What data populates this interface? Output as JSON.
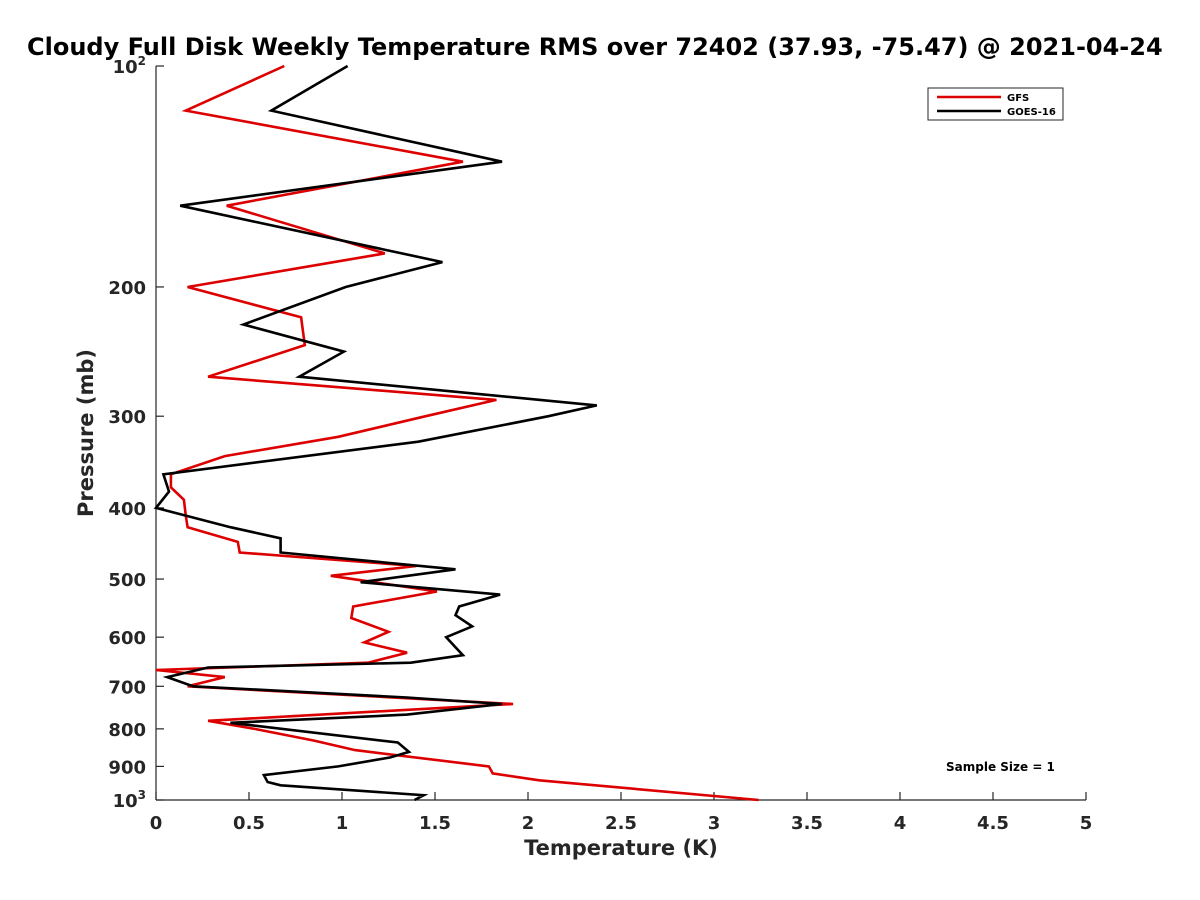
{
  "chart_data": {
    "type": "line",
    "title": "Cloudy Full Disk Weekly Temperature RMS over 72402 (37.93, -75.47) @ 2021-04-24",
    "xlabel": "Temperature (K)",
    "ylabel": "Pressure (mb)",
    "xlim": [
      0,
      5
    ],
    "ylim": [
      100,
      1000
    ],
    "y_scale": "log",
    "y_reversed": true,
    "x_ticks": [
      "0",
      "0.5",
      "1",
      "1.5",
      "2",
      "2.5",
      "3",
      "3.5",
      "4",
      "4.5",
      "5"
    ],
    "y_ticks": [
      {
        "value": 100,
        "base": "10",
        "exp": "2"
      },
      {
        "value": 200,
        "label": "200"
      },
      {
        "value": 300,
        "label": "300"
      },
      {
        "value": 400,
        "label": "400"
      },
      {
        "value": 500,
        "label": "500"
      },
      {
        "value": 600,
        "label": "600"
      },
      {
        "value": 700,
        "label": "700"
      },
      {
        "value": 800,
        "label": "800"
      },
      {
        "value": 900,
        "label": "900"
      },
      {
        "value": 1000,
        "base": "10",
        "exp": "3"
      }
    ],
    "legend_position": "top-right",
    "grid": false,
    "annotation": "Sample Size = 1",
    "series": [
      {
        "name": "GFS",
        "color": "#dd0000",
        "points": [
          [
            0.69,
            100
          ],
          [
            0.16,
            115
          ],
          [
            1.65,
            135
          ],
          [
            0.38,
            155
          ],
          [
            1.23,
            180
          ],
          [
            0.17,
            200
          ],
          [
            0.78,
            220
          ],
          [
            0.8,
            240
          ],
          [
            0.28,
            265
          ],
          [
            1.83,
            285
          ],
          [
            1.45,
            300
          ],
          [
            0.98,
            320
          ],
          [
            0.37,
            340
          ],
          [
            0.08,
            360
          ],
          [
            0.08,
            375
          ],
          [
            0.15,
            390
          ],
          [
            0.16,
            410
          ],
          [
            0.17,
            425
          ],
          [
            0.44,
            445
          ],
          [
            0.45,
            460
          ],
          [
            1.4,
            480
          ],
          [
            0.94,
            495
          ],
          [
            1.51,
            520
          ],
          [
            1.06,
            545
          ],
          [
            1.05,
            565
          ],
          [
            1.25,
            590
          ],
          [
            1.12,
            610
          ],
          [
            1.35,
            630
          ],
          [
            1.14,
            650
          ],
          [
            0.0,
            665
          ],
          [
            0.37,
            680
          ],
          [
            0.17,
            700
          ],
          [
            1.92,
            740
          ],
          [
            0.28,
            780
          ],
          [
            0.53,
            800
          ],
          [
            0.85,
            830
          ],
          [
            1.07,
            855
          ],
          [
            1.79,
            900
          ],
          [
            1.81,
            920
          ],
          [
            2.06,
            940
          ],
          [
            3.24,
            1000
          ]
        ]
      },
      {
        "name": "GOES-16",
        "color": "#000000",
        "points": [
          [
            1.03,
            100
          ],
          [
            0.62,
            115
          ],
          [
            1.86,
            135
          ],
          [
            0.13,
            155
          ],
          [
            1.54,
            185
          ],
          [
            1.02,
            200
          ],
          [
            0.47,
            225
          ],
          [
            1.01,
            245
          ],
          [
            0.77,
            265
          ],
          [
            2.37,
            290
          ],
          [
            2.11,
            300
          ],
          [
            1.41,
            325
          ],
          [
            0.04,
            360
          ],
          [
            0.07,
            380
          ],
          [
            0.0,
            400
          ],
          [
            0.4,
            425
          ],
          [
            0.67,
            440
          ],
          [
            0.67,
            460
          ],
          [
            1.61,
            485
          ],
          [
            1.1,
            505
          ],
          [
            1.85,
            525
          ],
          [
            1.63,
            545
          ],
          [
            1.61,
            560
          ],
          [
            1.7,
            580
          ],
          [
            1.56,
            600
          ],
          [
            1.65,
            635
          ],
          [
            1.37,
            650
          ],
          [
            0.28,
            660
          ],
          [
            0.06,
            680
          ],
          [
            0.2,
            700
          ],
          [
            1.35,
            725
          ],
          [
            1.86,
            740
          ],
          [
            1.35,
            765
          ],
          [
            0.4,
            785
          ],
          [
            1.3,
            835
          ],
          [
            1.36,
            860
          ],
          [
            1.26,
            875
          ],
          [
            0.98,
            900
          ],
          [
            0.58,
            925
          ],
          [
            0.6,
            945
          ],
          [
            0.67,
            955
          ],
          [
            1.44,
            985
          ],
          [
            1.39,
            1000
          ]
        ]
      }
    ]
  }
}
